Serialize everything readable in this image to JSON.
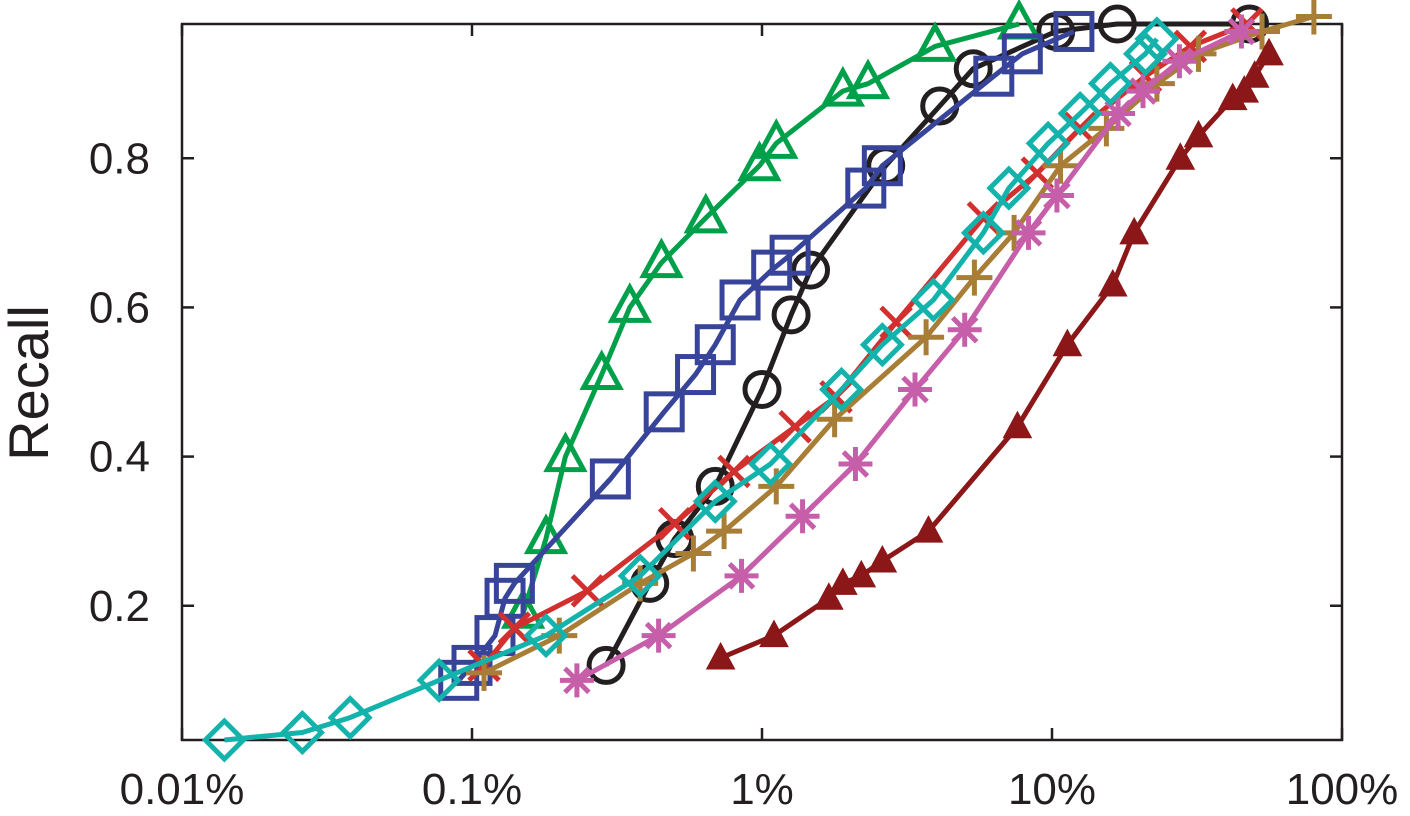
{
  "chart_data": {
    "type": "line",
    "title": "",
    "xlabel": "",
    "ylabel": "Recall",
    "x_scale": "log",
    "x_unit": "percent",
    "xlim": [
      0.01,
      100
    ],
    "ylim": [
      0.02,
      0.98
    ],
    "x_ticks": [
      {
        "value": 0.01,
        "label": "0.01%"
      },
      {
        "value": 0.1,
        "label": "0.1%"
      },
      {
        "value": 1,
        "label": "1%"
      },
      {
        "value": 10,
        "label": "10%"
      },
      {
        "value": 100,
        "label": "100%"
      }
    ],
    "y_ticks": [
      {
        "value": 0.2,
        "label": "0.2"
      },
      {
        "value": 0.4,
        "label": "0.4"
      },
      {
        "value": 0.6,
        "label": "0.6"
      },
      {
        "value": 0.8,
        "label": "0.8"
      }
    ],
    "grid": false,
    "legend": "none",
    "series": [
      {
        "color": "#231f20",
        "marker": "circle",
        "points": [
          [
            0.29,
            0.12
          ],
          [
            0.41,
            0.23
          ],
          [
            0.5,
            0.29
          ],
          [
            0.69,
            0.36
          ],
          [
            1.0,
            0.49
          ],
          [
            1.26,
            0.59
          ],
          [
            1.47,
            0.65
          ],
          [
            2.67,
            0.79
          ],
          [
            4.1,
            0.87
          ],
          [
            5.35,
            0.92
          ],
          [
            10.3,
            0.97
          ],
          [
            16.8,
            0.98
          ],
          [
            48,
            0.98
          ]
        ]
      },
      {
        "color": "#00a04b",
        "marker": "triangle",
        "points": [
          [
            0.15,
            0.19
          ],
          [
            0.18,
            0.29
          ],
          [
            0.21,
            0.4
          ],
          [
            0.28,
            0.51
          ],
          [
            0.35,
            0.6
          ],
          [
            0.45,
            0.66
          ],
          [
            0.64,
            0.72
          ],
          [
            0.98,
            0.79
          ],
          [
            1.12,
            0.82
          ],
          [
            1.9,
            0.89
          ],
          [
            2.32,
            0.9
          ],
          [
            3.95,
            0.95
          ],
          [
            7.7,
            0.98
          ]
        ]
      },
      {
        "color": "#37449a",
        "marker": "square",
        "points": [
          [
            0.09,
            0.1
          ],
          [
            0.1,
            0.12
          ],
          [
            0.12,
            0.16
          ],
          [
            0.13,
            0.21
          ],
          [
            0.14,
            0.23
          ],
          [
            0.3,
            0.37
          ],
          [
            0.46,
            0.46
          ],
          [
            0.59,
            0.51
          ],
          [
            0.69,
            0.55
          ],
          [
            0.84,
            0.61
          ],
          [
            1.08,
            0.65
          ],
          [
            1.25,
            0.67
          ],
          [
            2.28,
            0.76
          ],
          [
            2.6,
            0.79
          ],
          [
            6.3,
            0.91
          ],
          [
            7.9,
            0.94
          ],
          [
            11.9,
            0.97
          ]
        ]
      },
      {
        "color": "#d2302f",
        "marker": "x",
        "points": [
          [
            0.11,
            0.12
          ],
          [
            0.14,
            0.17
          ],
          [
            0.25,
            0.22
          ],
          [
            0.5,
            0.31
          ],
          [
            0.8,
            0.38
          ],
          [
            1.3,
            0.44
          ],
          [
            1.8,
            0.48
          ],
          [
            2.9,
            0.58
          ],
          [
            5.8,
            0.72
          ],
          [
            8.9,
            0.78
          ],
          [
            12.5,
            0.84
          ],
          [
            21,
            0.91
          ],
          [
            30,
            0.95
          ],
          [
            47,
            0.98
          ]
        ]
      },
      {
        "color": "#a87d36",
        "marker": "plus",
        "points": [
          [
            0.11,
            0.11
          ],
          [
            0.2,
            0.16
          ],
          [
            0.38,
            0.23
          ],
          [
            0.58,
            0.27
          ],
          [
            0.74,
            0.3
          ],
          [
            1.12,
            0.36
          ],
          [
            1.78,
            0.45
          ],
          [
            3.68,
            0.56
          ],
          [
            5.4,
            0.64
          ],
          [
            7.4,
            0.7
          ],
          [
            10.7,
            0.79
          ],
          [
            15.4,
            0.84
          ],
          [
            23,
            0.9
          ],
          [
            32,
            0.94
          ],
          [
            53,
            0.97
          ],
          [
            80,
            0.99
          ]
        ]
      },
      {
        "color": "#c65ea9",
        "marker": "asterisk",
        "points": [
          [
            0.23,
            0.1
          ],
          [
            0.44,
            0.16
          ],
          [
            0.85,
            0.24
          ],
          [
            1.38,
            0.32
          ],
          [
            2.1,
            0.39
          ],
          [
            3.37,
            0.49
          ],
          [
            5.0,
            0.57
          ],
          [
            8.3,
            0.7
          ],
          [
            10.4,
            0.75
          ],
          [
            16.9,
            0.86
          ],
          [
            20.6,
            0.89
          ],
          [
            27.5,
            0.93
          ],
          [
            45,
            0.97
          ]
        ]
      },
      {
        "color": "#8b1718",
        "marker": "triangle-filled",
        "points": [
          [
            0.72,
            0.13
          ],
          [
            1.1,
            0.16
          ],
          [
            1.7,
            0.21
          ],
          [
            1.9,
            0.23
          ],
          [
            2.2,
            0.24
          ],
          [
            2.6,
            0.26
          ],
          [
            3.75,
            0.3
          ],
          [
            7.6,
            0.44
          ],
          [
            11.3,
            0.55
          ],
          [
            16.2,
            0.63
          ],
          [
            19.2,
            0.7
          ],
          [
            27.7,
            0.8
          ],
          [
            32,
            0.83
          ],
          [
            42,
            0.88
          ],
          [
            46,
            0.89
          ],
          [
            50,
            0.91
          ],
          [
            56,
            0.94
          ]
        ]
      },
      {
        "color": "#13b3ac",
        "marker": "diamond",
        "points": [
          [
            0.014,
            0.02
          ],
          [
            0.026,
            0.03
          ],
          [
            0.038,
            0.05
          ],
          [
            0.077,
            0.1
          ],
          [
            0.18,
            0.16
          ],
          [
            0.38,
            0.24
          ],
          [
            0.69,
            0.34
          ],
          [
            1.07,
            0.39
          ],
          [
            1.88,
            0.49
          ],
          [
            2.6,
            0.55
          ],
          [
            3.9,
            0.61
          ],
          [
            5.8,
            0.7
          ],
          [
            7.1,
            0.76
          ],
          [
            9.7,
            0.82
          ],
          [
            12.5,
            0.86
          ],
          [
            15.9,
            0.9
          ],
          [
            21,
            0.94
          ],
          [
            23,
            0.96
          ]
        ]
      }
    ]
  }
}
